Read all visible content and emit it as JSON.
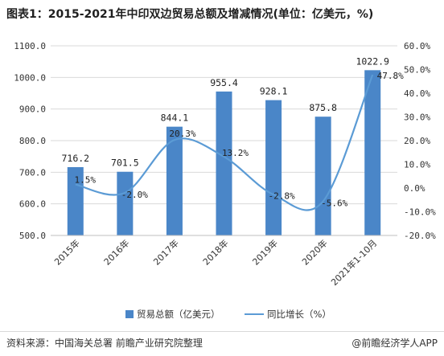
{
  "title": "图表1：2015-2021年中印双边贸易总额及增减情况(单位：亿美元，%)",
  "source": "资料来源：中国海关总署 前瞻产业研究院整理",
  "brand": "@前瞻经济学人APP",
  "colors": {
    "bar": "#4a86c8",
    "line": "#5b9bd5",
    "grid": "#d9d9d9",
    "text": "#333333"
  },
  "chart_data": {
    "type": "bar",
    "categories": [
      "2015年",
      "2016年",
      "2017年",
      "2018年",
      "2019年",
      "2020年",
      "2021年1-10月"
    ],
    "y_left_ticks": [
      "500.0",
      "600.0",
      "700.0",
      "800.0",
      "900.0",
      "1000.0",
      "1100.0"
    ],
    "y_right_ticks": [
      "-20.0%",
      "-10.0%",
      "0.0%",
      "10.0%",
      "20.0%",
      "30.0%",
      "40.0%",
      "50.0%",
      "60.0%"
    ],
    "ylim_left": [
      500,
      1100
    ],
    "ylim_right": [
      -20,
      60
    ],
    "series": [
      {
        "name": "贸易总额（亿美元）",
        "type": "bar",
        "axis": "left",
        "values": [
          716.2,
          701.5,
          844.1,
          955.4,
          928.1,
          875.8,
          1022.9
        ],
        "labels": [
          "716.2",
          "701.5",
          "844.1",
          "955.4",
          "928.1",
          "875.8",
          "1022.9"
        ]
      },
      {
        "name": "同比增长（%）",
        "type": "line",
        "axis": "right",
        "values": [
          1.5,
          -2.0,
          20.3,
          13.2,
          -2.8,
          -5.6,
          47.8
        ],
        "labels": [
          "1.5%",
          "-2.0%",
          "20.3%",
          "13.2%",
          "-2.8%",
          "-5.6%",
          "47.8%"
        ]
      }
    ],
    "grid": true,
    "legend": "bottom"
  }
}
